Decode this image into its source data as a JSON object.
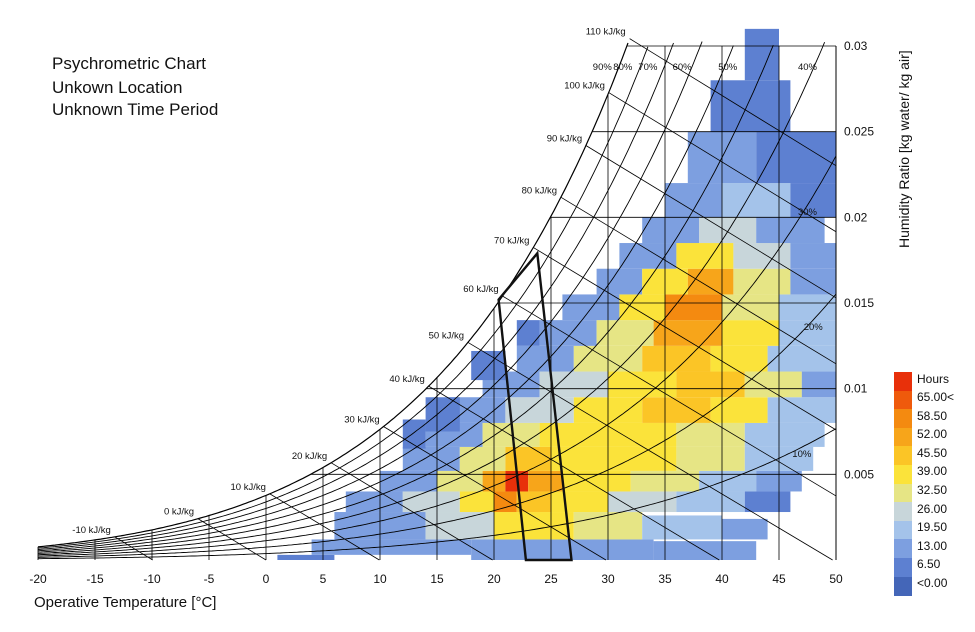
{
  "chart_data": {
    "type": "heatmap",
    "title_lines": [
      "Psychrometric Chart",
      "Unkown Location",
      "Unknown Time Period"
    ],
    "xlabel": "Operative Temperature [°C]",
    "ylabel": "Humidity Ratio [kg water/ kg air]",
    "xlim": [
      -20,
      50
    ],
    "ylim": [
      0,
      0.03
    ],
    "x_ticks": [
      "-20",
      "-15",
      "-10",
      "-5",
      "0",
      "5",
      "10",
      "15",
      "20",
      "25",
      "30",
      "35",
      "40",
      "45",
      "50"
    ],
    "x_tick_values": [
      -20,
      -15,
      -10,
      -5,
      0,
      5,
      10,
      15,
      20,
      25,
      30,
      35,
      40,
      45,
      50
    ],
    "y_ticks": [
      "0.005",
      "0.01",
      "0.015",
      "0.02",
      "0.025",
      "0.03"
    ],
    "y_tick_values": [
      0.005,
      0.01,
      0.015,
      0.02,
      0.025,
      0.03
    ],
    "rh_lines": [
      {
        "label": "10%",
        "rh": 10
      },
      {
        "label": "20%",
        "rh": 20
      },
      {
        "label": "30%",
        "rh": 30
      },
      {
        "label": "40%",
        "rh": 40
      },
      {
        "label": "50%",
        "rh": 50
      },
      {
        "label": "60%",
        "rh": 60
      },
      {
        "label": "70%",
        "rh": 70
      },
      {
        "label": "80%",
        "rh": 80
      },
      {
        "label": "90%",
        "rh": 90
      }
    ],
    "enthalpy_lines": [
      {
        "label": "-10 kJ/kg",
        "h": -10
      },
      {
        "label": "0 kJ/kg",
        "h": 0
      },
      {
        "label": "10 kJ/kg",
        "h": 10
      },
      {
        "label": "20 kJ/kg",
        "h": 20
      },
      {
        "label": "30 kJ/kg",
        "h": 30
      },
      {
        "label": "40 kJ/kg",
        "h": 40
      },
      {
        "label": "50 kJ/kg",
        "h": 50
      },
      {
        "label": "60 kJ/kg",
        "h": 60
      },
      {
        "label": "70 kJ/kg",
        "h": 70
      },
      {
        "label": "80 kJ/kg",
        "h": 80
      },
      {
        "label": "90 kJ/kg",
        "h": 90
      },
      {
        "label": "100 kJ/kg",
        "h": 100
      },
      {
        "label": "110 kJ/kg",
        "h": 110
      }
    ],
    "comfort_polygon": [
      [
        22.8,
        0
      ],
      [
        26.8,
        0
      ],
      [
        23.8,
        0.0179
      ],
      [
        20.4,
        0.0152
      ]
    ],
    "legend": {
      "title": "Hours",
      "labels": [
        "65.00<",
        "58.50",
        "52.00",
        "45.50",
        "39.00",
        "32.50",
        "26.00",
        "19.50",
        "13.00",
        "6.50",
        "<0.00"
      ],
      "colors": [
        "#e8300a",
        "#ef5a0c",
        "#f48a10",
        "#f7a51a",
        "#fbc526",
        "#fbe33a",
        "#e6e585",
        "#c8d6da",
        "#a4c3ea",
        "#7d9fe0",
        "#5d80d1",
        "#4466b8"
      ],
      "position": "right"
    },
    "heatmap_rows": [
      {
        "t0": 1,
        "t1": 6,
        "w0": 0.0,
        "w1": 0.0003,
        "hours": 4
      },
      {
        "t0": 4,
        "t1": 18,
        "w0": 0.0003,
        "w1": 0.0012,
        "hours": 8
      },
      {
        "t0": 18,
        "t1": 34,
        "w0": 0.0,
        "w1": 0.0012,
        "hours": 12
      },
      {
        "t0": 34,
        "t1": 43,
        "w0": 0.0,
        "w1": 0.0011,
        "hours": 8
      },
      {
        "t0": 6,
        "t1": 14,
        "w0": 0.0012,
        "w1": 0.0028,
        "hours": 10
      },
      {
        "t0": 14,
        "t1": 20,
        "w0": 0.0012,
        "w1": 0.0028,
        "hours": 22
      },
      {
        "t0": 20,
        "t1": 27,
        "w0": 0.0012,
        "w1": 0.0028,
        "hours": 33
      },
      {
        "t0": 27,
        "t1": 33,
        "w0": 0.0012,
        "w1": 0.0028,
        "hours": 28
      },
      {
        "t0": 33,
        "t1": 40,
        "w0": 0.0012,
        "w1": 0.0026,
        "hours": 16
      },
      {
        "t0": 40,
        "t1": 44,
        "w0": 0.0012,
        "w1": 0.0024,
        "hours": 7
      },
      {
        "t0": 7,
        "t1": 12,
        "w0": 0.0028,
        "w1": 0.004,
        "hours": 8
      },
      {
        "t0": 12,
        "t1": 17,
        "w0": 0.0028,
        "w1": 0.004,
        "hours": 24
      },
      {
        "t0": 17,
        "t1": 20,
        "w0": 0.0028,
        "w1": 0.004,
        "hours": 38
      },
      {
        "t0": 20,
        "t1": 22,
        "w0": 0.0028,
        "w1": 0.004,
        "hours": 58
      },
      {
        "t0": 22,
        "t1": 25,
        "w0": 0.0028,
        "w1": 0.004,
        "hours": 44
      },
      {
        "t0": 25,
        "t1": 30,
        "w0": 0.0028,
        "w1": 0.004,
        "hours": 35
      },
      {
        "t0": 30,
        "t1": 36,
        "w0": 0.0028,
        "w1": 0.004,
        "hours": 24
      },
      {
        "t0": 36,
        "t1": 42,
        "w0": 0.0028,
        "w1": 0.004,
        "hours": 14
      },
      {
        "t0": 42,
        "t1": 46,
        "w0": 0.0028,
        "w1": 0.004,
        "hours": 6
      },
      {
        "t0": 10,
        "t1": 15,
        "w0": 0.004,
        "w1": 0.0052,
        "hours": 12
      },
      {
        "t0": 15,
        "t1": 19,
        "w0": 0.004,
        "w1": 0.0052,
        "hours": 30
      },
      {
        "t0": 19,
        "t1": 21,
        "w0": 0.004,
        "w1": 0.0052,
        "hours": 48
      },
      {
        "t0": 21,
        "t1": 23,
        "w0": 0.004,
        "w1": 0.0052,
        "hours": 66
      },
      {
        "t0": 23,
        "t1": 26,
        "w0": 0.004,
        "w1": 0.0052,
        "hours": 46
      },
      {
        "t0": 26,
        "t1": 32,
        "w0": 0.004,
        "w1": 0.0052,
        "hours": 36
      },
      {
        "t0": 32,
        "t1": 38,
        "w0": 0.004,
        "w1": 0.0052,
        "hours": 28
      },
      {
        "t0": 38,
        "t1": 43,
        "w0": 0.004,
        "w1": 0.0052,
        "hours": 18
      },
      {
        "t0": 43,
        "t1": 47,
        "w0": 0.004,
        "w1": 0.0052,
        "hours": 10
      },
      {
        "t0": 12,
        "t1": 17,
        "w0": 0.0052,
        "w1": 0.0066,
        "hours": 10
      },
      {
        "t0": 17,
        "t1": 21,
        "w0": 0.0052,
        "w1": 0.0066,
        "hours": 26
      },
      {
        "t0": 21,
        "t1": 25,
        "w0": 0.0052,
        "w1": 0.0066,
        "hours": 40
      },
      {
        "t0": 25,
        "t1": 30,
        "w0": 0.0052,
        "w1": 0.0066,
        "hours": 36
      },
      {
        "t0": 30,
        "t1": 36,
        "w0": 0.0052,
        "w1": 0.0066,
        "hours": 34
      },
      {
        "t0": 36,
        "t1": 42,
        "w0": 0.0052,
        "w1": 0.0066,
        "hours": 26
      },
      {
        "t0": 42,
        "t1": 48,
        "w0": 0.0052,
        "w1": 0.0066,
        "hours": 14
      },
      {
        "t0": 14,
        "t1": 19,
        "w0": 0.0066,
        "w1": 0.008,
        "hours": 8
      },
      {
        "t0": 19,
        "t1": 24,
        "w0": 0.0066,
        "w1": 0.008,
        "hours": 30
      },
      {
        "t0": 24,
        "t1": 30,
        "w0": 0.0066,
        "w1": 0.008,
        "hours": 36
      },
      {
        "t0": 30,
        "t1": 36,
        "w0": 0.0066,
        "w1": 0.008,
        "hours": 38
      },
      {
        "t0": 36,
        "t1": 42,
        "w0": 0.0066,
        "w1": 0.008,
        "hours": 30
      },
      {
        "t0": 42,
        "t1": 49,
        "w0": 0.0066,
        "w1": 0.008,
        "hours": 16
      },
      {
        "t0": 16,
        "t1": 21,
        "w0": 0.008,
        "w1": 0.0095,
        "hours": 8
      },
      {
        "t0": 21,
        "t1": 27,
        "w0": 0.008,
        "w1": 0.0095,
        "hours": 24
      },
      {
        "t0": 27,
        "t1": 33,
        "w0": 0.008,
        "w1": 0.0095,
        "hours": 34
      },
      {
        "t0": 33,
        "t1": 39,
        "w0": 0.008,
        "w1": 0.0095,
        "hours": 40
      },
      {
        "t0": 39,
        "t1": 44,
        "w0": 0.008,
        "w1": 0.0095,
        "hours": 34
      },
      {
        "t0": 44,
        "t1": 50,
        "w0": 0.008,
        "w1": 0.0095,
        "hours": 14
      },
      {
        "t0": 19,
        "t1": 24,
        "w0": 0.0095,
        "w1": 0.011,
        "hours": 8
      },
      {
        "t0": 24,
        "t1": 30,
        "w0": 0.0095,
        "w1": 0.011,
        "hours": 22
      },
      {
        "t0": 30,
        "t1": 36,
        "w0": 0.0095,
        "w1": 0.011,
        "hours": 36
      },
      {
        "t0": 36,
        "t1": 42,
        "w0": 0.0095,
        "w1": 0.011,
        "hours": 40
      },
      {
        "t0": 42,
        "t1": 47,
        "w0": 0.0095,
        "w1": 0.011,
        "hours": 30
      },
      {
        "t0": 47,
        "t1": 50,
        "w0": 0.0095,
        "w1": 0.011,
        "hours": 12
      },
      {
        "t0": 22,
        "t1": 27,
        "w0": 0.011,
        "w1": 0.0125,
        "hours": 8
      },
      {
        "t0": 27,
        "t1": 33,
        "w0": 0.011,
        "w1": 0.0125,
        "hours": 26
      },
      {
        "t0": 33,
        "t1": 39,
        "w0": 0.011,
        "w1": 0.0125,
        "hours": 42
      },
      {
        "t0": 39,
        "t1": 44,
        "w0": 0.011,
        "w1": 0.0125,
        "hours": 34
      },
      {
        "t0": 44,
        "t1": 50,
        "w0": 0.011,
        "w1": 0.0125,
        "hours": 16
      },
      {
        "t0": 24,
        "t1": 29,
        "w0": 0.0125,
        "w1": 0.014,
        "hours": 8
      },
      {
        "t0": 29,
        "t1": 34,
        "w0": 0.0125,
        "w1": 0.014,
        "hours": 32
      },
      {
        "t0": 34,
        "t1": 40,
        "w0": 0.0125,
        "w1": 0.014,
        "hours": 48
      },
      {
        "t0": 40,
        "t1": 45,
        "w0": 0.0125,
        "w1": 0.014,
        "hours": 34
      },
      {
        "t0": 45,
        "t1": 50,
        "w0": 0.0125,
        "w1": 0.014,
        "hours": 14
      },
      {
        "t0": 26,
        "t1": 31,
        "w0": 0.014,
        "w1": 0.0155,
        "hours": 10
      },
      {
        "t0": 31,
        "t1": 35,
        "w0": 0.014,
        "w1": 0.0155,
        "hours": 34
      },
      {
        "t0": 35,
        "t1": 40,
        "w0": 0.014,
        "w1": 0.0155,
        "hours": 52
      },
      {
        "t0": 40,
        "t1": 45,
        "w0": 0.014,
        "w1": 0.0155,
        "hours": 30
      },
      {
        "t0": 45,
        "t1": 50,
        "w0": 0.014,
        "w1": 0.0155,
        "hours": 14
      },
      {
        "t0": 29,
        "t1": 33,
        "w0": 0.0155,
        "w1": 0.017,
        "hours": 10
      },
      {
        "t0": 33,
        "t1": 37,
        "w0": 0.0155,
        "w1": 0.017,
        "hours": 38
      },
      {
        "t0": 37,
        "t1": 41,
        "w0": 0.0155,
        "w1": 0.017,
        "hours": 50
      },
      {
        "t0": 41,
        "t1": 46,
        "w0": 0.0155,
        "w1": 0.017,
        "hours": 26
      },
      {
        "t0": 46,
        "t1": 50,
        "w0": 0.0155,
        "w1": 0.017,
        "hours": 10
      },
      {
        "t0": 31,
        "t1": 36,
        "w0": 0.017,
        "w1": 0.0185,
        "hours": 10
      },
      {
        "t0": 36,
        "t1": 41,
        "w0": 0.017,
        "w1": 0.0185,
        "hours": 34
      },
      {
        "t0": 41,
        "t1": 46,
        "w0": 0.017,
        "w1": 0.0185,
        "hours": 22
      },
      {
        "t0": 46,
        "t1": 50,
        "w0": 0.017,
        "w1": 0.0185,
        "hours": 8
      },
      {
        "t0": 33,
        "t1": 38,
        "w0": 0.0185,
        "w1": 0.02,
        "hours": 10
      },
      {
        "t0": 38,
        "t1": 43,
        "w0": 0.0185,
        "w1": 0.02,
        "hours": 24
      },
      {
        "t0": 43,
        "t1": 49,
        "w0": 0.0185,
        "w1": 0.02,
        "hours": 12
      },
      {
        "t0": 35,
        "t1": 40,
        "w0": 0.02,
        "w1": 0.022,
        "hours": 8
      },
      {
        "t0": 40,
        "t1": 46,
        "w0": 0.02,
        "w1": 0.022,
        "hours": 14
      },
      {
        "t0": 46,
        "t1": 50,
        "w0": 0.02,
        "w1": 0.022,
        "hours": 6
      },
      {
        "t0": 37,
        "t1": 43,
        "w0": 0.022,
        "w1": 0.025,
        "hours": 8
      },
      {
        "t0": 43,
        "t1": 50,
        "w0": 0.022,
        "w1": 0.025,
        "hours": 6
      },
      {
        "t0": 39,
        "t1": 46,
        "w0": 0.025,
        "w1": 0.028,
        "hours": 5
      },
      {
        "t0": 42,
        "t1": 45,
        "w0": 0.028,
        "w1": 0.031,
        "hours": 4
      },
      {
        "t0": 14,
        "t1": 17,
        "w0": 0.0075,
        "w1": 0.0095,
        "hours": 6
      },
      {
        "t0": 12,
        "t1": 14,
        "w0": 0.0065,
        "w1": 0.0082,
        "hours": 4
      },
      {
        "t0": 18,
        "t1": 21,
        "w0": 0.0105,
        "w1": 0.0122,
        "hours": 5
      },
      {
        "t0": 22,
        "t1": 24,
        "w0": 0.0125,
        "w1": 0.014,
        "hours": 4
      }
    ]
  }
}
